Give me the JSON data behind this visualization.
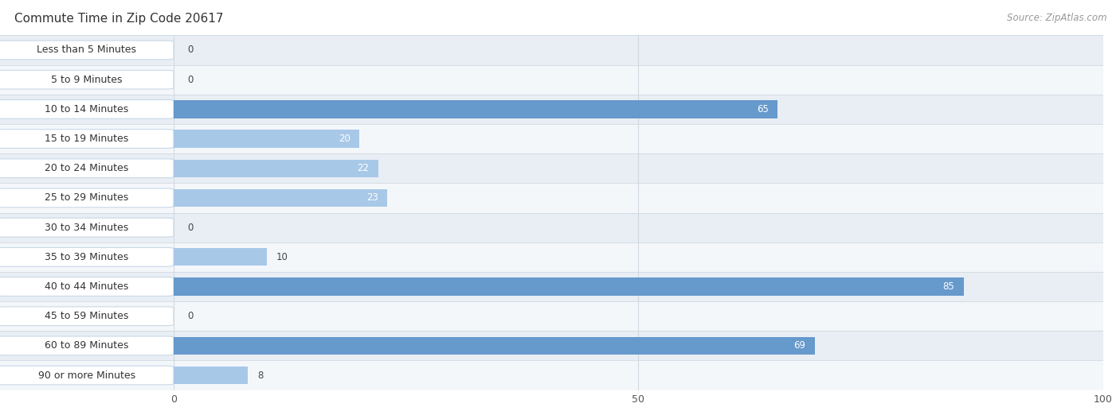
{
  "title": "Commute Time in Zip Code 20617",
  "source_text": "Source: ZipAtlas.com",
  "categories": [
    "Less than 5 Minutes",
    "5 to 9 Minutes",
    "10 to 14 Minutes",
    "15 to 19 Minutes",
    "20 to 24 Minutes",
    "25 to 29 Minutes",
    "30 to 34 Minutes",
    "35 to 39 Minutes",
    "40 to 44 Minutes",
    "45 to 59 Minutes",
    "60 to 89 Minutes",
    "90 or more Minutes"
  ],
  "values": [
    0,
    0,
    65,
    20,
    22,
    23,
    0,
    10,
    85,
    0,
    69,
    8
  ],
  "bar_color_light": "#a8c8e8",
  "bar_color_dark": "#6699cc",
  "label_color_inside": "#ffffff",
  "label_color_outside": "#444444",
  "background_color": "#ffffff",
  "row_color_dark": "#e8eef4",
  "row_color_light": "#f4f7fa",
  "xlim": [
    0,
    100
  ],
  "xticks": [
    0,
    50,
    100
  ],
  "title_fontsize": 11,
  "source_fontsize": 8.5,
  "label_fontsize": 8.5,
  "tick_fontsize": 9,
  "category_fontsize": 9,
  "grid_color": "#d0d8e0",
  "bar_height": 0.6,
  "dark_threshold": 50,
  "inside_label_threshold": 15,
  "pill_bg": "#ffffff",
  "pill_border": "#c8d8e8"
}
